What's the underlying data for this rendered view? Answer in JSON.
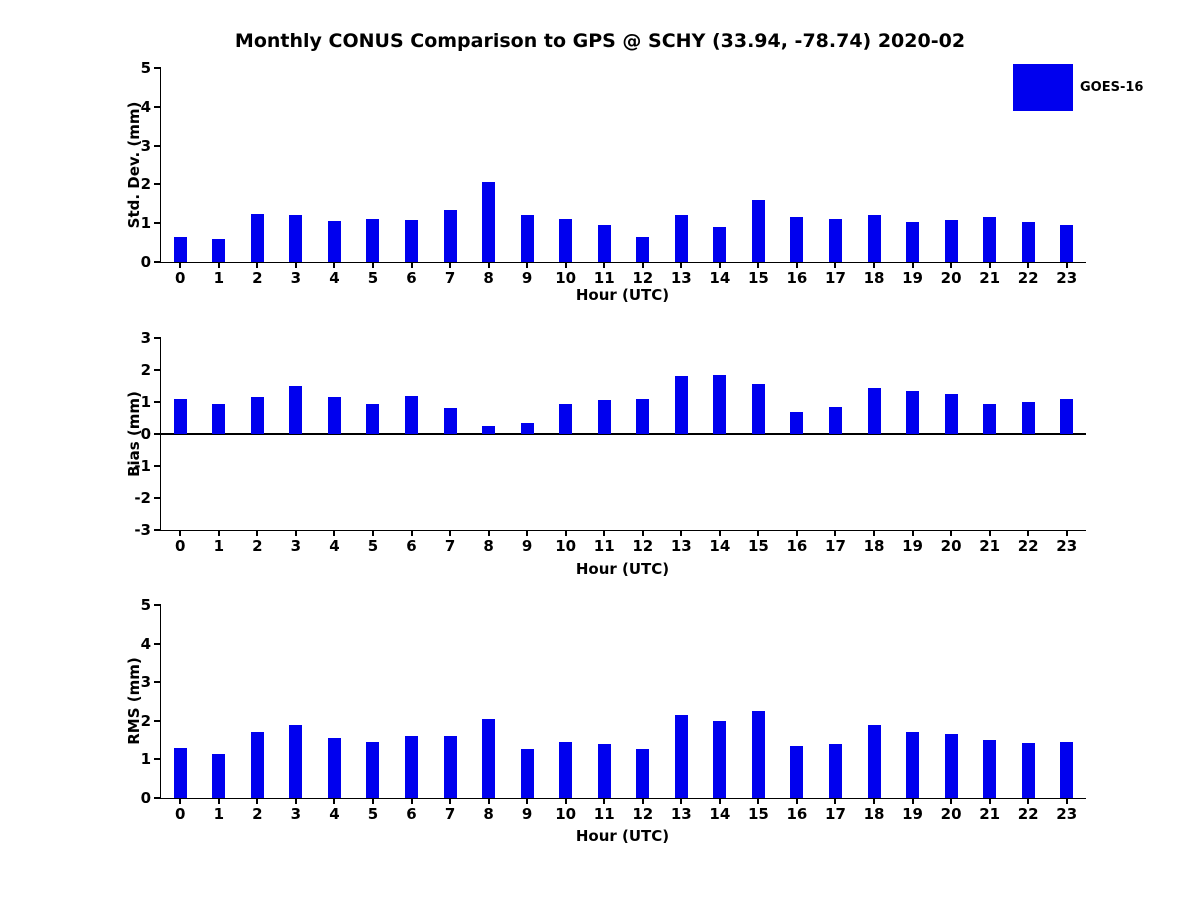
{
  "title": "Monthly CONUS Comparison to GPS @ SCHY (33.94, -78.74) 2020-02",
  "legend": {
    "label": "GOES-16",
    "color": "#0000ee"
  },
  "chart_data": [
    {
      "type": "bar",
      "ylabel": "Std. Dev. (mm)",
      "xlabel": "Hour (UTC)",
      "categories": [
        0,
        1,
        2,
        3,
        4,
        5,
        6,
        7,
        8,
        9,
        10,
        11,
        12,
        13,
        14,
        15,
        16,
        17,
        18,
        19,
        20,
        21,
        22,
        23
      ],
      "values": [
        0.65,
        0.6,
        1.25,
        1.2,
        1.05,
        1.1,
        1.08,
        1.35,
        2.05,
        1.22,
        1.1,
        0.95,
        0.65,
        1.2,
        0.9,
        1.6,
        1.17,
        1.12,
        1.2,
        1.02,
        1.07,
        1.15,
        1.02,
        0.95
      ],
      "ylim": [
        0,
        5
      ],
      "yticks": [
        0,
        1,
        2,
        3,
        4,
        5
      ],
      "legend": "GOES-16",
      "grid": false,
      "bar_color": "#0000ee"
    },
    {
      "type": "bar",
      "ylabel": "Bias (mm)",
      "xlabel": "Hour (UTC)",
      "categories": [
        0,
        1,
        2,
        3,
        4,
        5,
        6,
        7,
        8,
        9,
        10,
        11,
        12,
        13,
        14,
        15,
        16,
        17,
        18,
        19,
        20,
        21,
        22,
        23
      ],
      "values": [
        1.1,
        0.95,
        1.15,
        1.5,
        1.15,
        0.95,
        1.2,
        0.8,
        0.25,
        0.35,
        0.95,
        1.05,
        1.1,
        1.8,
        1.85,
        1.55,
        0.7,
        0.85,
        1.45,
        1.35,
        1.25,
        0.95,
        1.0,
        1.1
      ],
      "ylim": [
        -3,
        3
      ],
      "yticks": [
        -3,
        -2,
        -1,
        0,
        1,
        2,
        3
      ],
      "legend": "GOES-16",
      "grid": false,
      "bar_color": "#0000ee"
    },
    {
      "type": "bar",
      "ylabel": "RMS (mm)",
      "xlabel": "Hour (UTC)",
      "categories": [
        0,
        1,
        2,
        3,
        4,
        5,
        6,
        7,
        8,
        9,
        10,
        11,
        12,
        13,
        14,
        15,
        16,
        17,
        18,
        19,
        20,
        21,
        22,
        23
      ],
      "values": [
        1.3,
        1.15,
        1.7,
        1.9,
        1.55,
        1.45,
        1.6,
        1.6,
        2.05,
        1.27,
        1.45,
        1.4,
        1.27,
        2.15,
        2.0,
        2.25,
        1.35,
        1.4,
        1.9,
        1.7,
        1.65,
        1.5,
        1.42,
        1.45
      ],
      "ylim": [
        0,
        5
      ],
      "yticks": [
        0,
        1,
        2,
        3,
        4,
        5
      ],
      "legend": "GOES-16",
      "grid": false,
      "bar_color": "#0000ee"
    }
  ]
}
